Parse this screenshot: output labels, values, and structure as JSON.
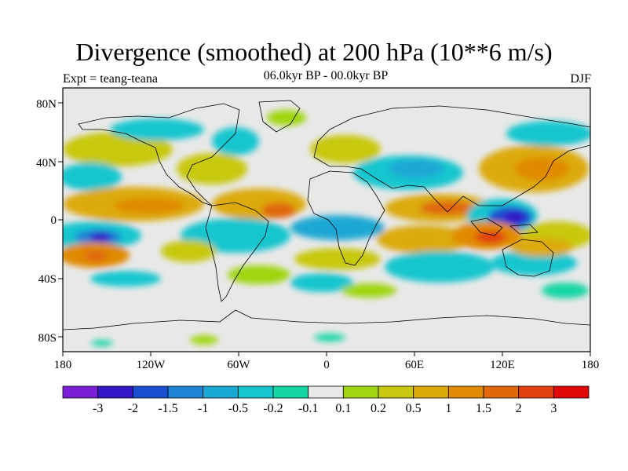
{
  "title": "Divergence (smoothed) at 200 hPa (10**6 m/s)",
  "left_label": "Expt = teang-teana",
  "center_label": "06.0kyr BP - 00.0kyr BP",
  "right_label": "DJF",
  "axes": {
    "lat_ticks": [
      "80N",
      "40N",
      "0",
      "40S",
      "80S"
    ],
    "lon_ticks": [
      "180",
      "120W",
      "60W",
      "0",
      "60E",
      "120E",
      "180"
    ]
  },
  "colorbar": {
    "labels": [
      "-3",
      "-2",
      "-1.5",
      "-1",
      "-0.5",
      "-0.2",
      "-0.1",
      "0.1",
      "0.2",
      "0.5",
      "1",
      "1.5",
      "2",
      "3"
    ],
    "colors": [
      "#7a1fd6",
      "#3318c8",
      "#1a4fd0",
      "#1e84d6",
      "#1aa8d4",
      "#15c6cf",
      "#14d6a5",
      "#e8e8e8",
      "#9fd60f",
      "#c8c810",
      "#dcaa08",
      "#e08a05",
      "#e0680a",
      "#e2400c",
      "#e00808"
    ]
  },
  "colors": {
    "land_outline": "#000000",
    "frame": "#000000",
    "missing": "#e8e8e8"
  }
}
